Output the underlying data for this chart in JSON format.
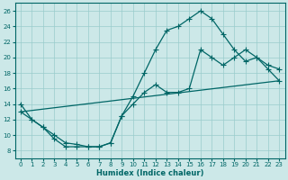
{
  "xlabel": "Humidex (Indice chaleur)",
  "bg_color": "#cce8e8",
  "grid_color": "#99cccc",
  "line_color": "#006666",
  "xlim": [
    -0.5,
    23.5
  ],
  "ylim": [
    7,
    27
  ],
  "xticks": [
    0,
    1,
    2,
    3,
    4,
    5,
    6,
    7,
    8,
    9,
    10,
    11,
    12,
    13,
    14,
    15,
    16,
    17,
    18,
    19,
    20,
    21,
    22,
    23
  ],
  "yticks": [
    8,
    10,
    12,
    14,
    16,
    18,
    20,
    22,
    24,
    26
  ],
  "curve1_x": [
    0,
    1,
    2,
    3,
    4,
    5,
    6,
    7,
    8,
    9,
    10,
    11,
    12,
    13,
    14,
    15,
    16,
    17,
    18,
    19,
    20,
    21,
    22,
    23
  ],
  "curve1_y": [
    14,
    12,
    11,
    9.5,
    8.5,
    8.5,
    8.5,
    8.5,
    9,
    12.5,
    15,
    18,
    21,
    23.5,
    24,
    25,
    26,
    25,
    23,
    21,
    19.5,
    20,
    18.5,
    17
  ],
  "curve2_x": [
    0,
    1,
    2,
    3,
    4,
    5,
    6,
    7,
    8,
    9,
    10,
    11,
    12,
    13,
    14,
    15,
    16,
    17,
    18,
    19,
    20,
    21,
    22,
    23
  ],
  "curve2_y": [
    13,
    12,
    11,
    10,
    9,
    8.8,
    8.5,
    8.5,
    9,
    12.5,
    14,
    15.5,
    16.5,
    15.5,
    15.5,
    16,
    21,
    20,
    19,
    20,
    21,
    20,
    19,
    18.5
  ],
  "line3_x": [
    0,
    23
  ],
  "line3_y": [
    13,
    17
  ]
}
